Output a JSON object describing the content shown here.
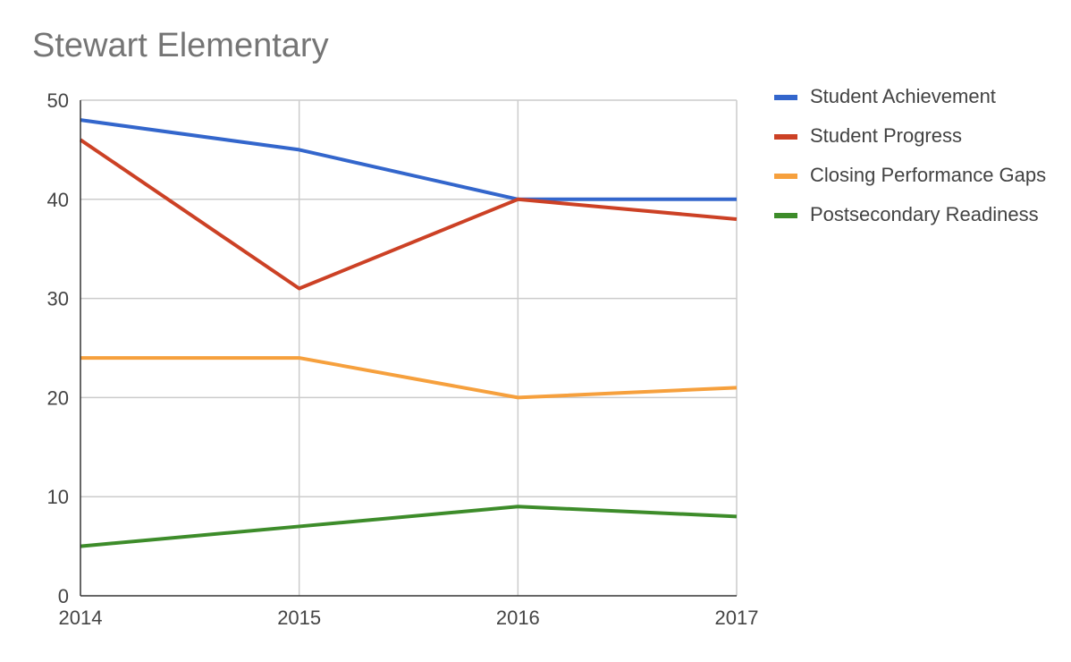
{
  "chart_data": {
    "type": "line",
    "title": "Stewart Elementary",
    "xlabel": "",
    "ylabel": "",
    "x": [
      2014,
      2015,
      2016,
      2017
    ],
    "x_tick_labels": [
      "2014",
      "2015",
      "2016",
      "2017"
    ],
    "y_ticks": [
      0,
      10,
      20,
      30,
      40,
      50
    ],
    "ylim": [
      0,
      50
    ],
    "grid": true,
    "legend_position": "right",
    "series": [
      {
        "name": "Student Achievement",
        "color": "#3366cc",
        "values": [
          48,
          45,
          40,
          40
        ]
      },
      {
        "name": "Student Progress",
        "color": "#cc4125",
        "values": [
          46,
          31,
          40,
          38
        ]
      },
      {
        "name": "Closing Performance Gaps",
        "color": "#f6a03d",
        "values": [
          24,
          24,
          20,
          21
        ]
      },
      {
        "name": "Postsecondary Readiness",
        "color": "#3d8c2a",
        "values": [
          5,
          7,
          9,
          8
        ]
      }
    ]
  }
}
